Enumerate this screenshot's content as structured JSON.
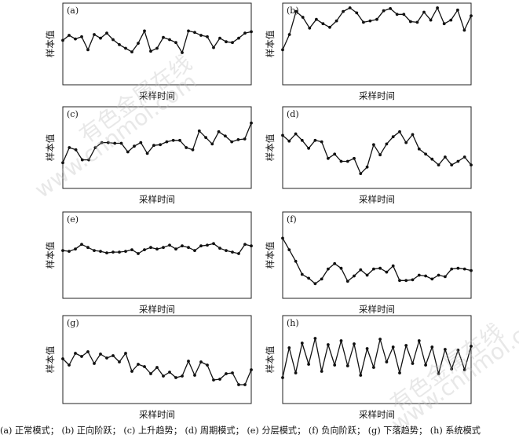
{
  "chart_data": [
    {
      "type": "line",
      "panel_label": "(a)",
      "ylabel": "样本值",
      "xlabel": "采样时间",
      "ylim": [
        0,
        1
      ],
      "values": [
        0.55,
        0.62,
        0.57,
        0.6,
        0.42,
        0.63,
        0.58,
        0.65,
        0.56,
        0.49,
        0.44,
        0.39,
        0.51,
        0.68,
        0.4,
        0.44,
        0.59,
        0.56,
        0.52,
        0.38,
        0.68,
        0.66,
        0.62,
        0.6,
        0.45,
        0.58,
        0.53,
        0.52,
        0.58,
        0.65,
        0.67
      ]
    },
    {
      "type": "line",
      "panel_label": "(b)",
      "ylabel": "样本值",
      "xlabel": "采样时间",
      "ylim": [
        0,
        1
      ],
      "values": [
        0.42,
        0.63,
        0.95,
        0.87,
        0.72,
        0.84,
        0.78,
        0.73,
        0.82,
        0.95,
        1.0,
        0.93,
        0.8,
        0.82,
        0.84,
        0.96,
        0.99,
        0.91,
        0.91,
        0.81,
        0.8,
        0.94,
        0.83,
        1.0,
        0.78,
        0.83,
        0.97,
        0.69,
        0.89
      ]
    },
    {
      "type": "line",
      "panel_label": "(c)",
      "ylabel": "样本值",
      "xlabel": "采样时间",
      "ylim": [
        0,
        1
      ],
      "values": [
        0.29,
        0.5,
        0.47,
        0.33,
        0.33,
        0.5,
        0.57,
        0.57,
        0.56,
        0.56,
        0.44,
        0.52,
        0.57,
        0.42,
        0.53,
        0.54,
        0.58,
        0.6,
        0.6,
        0.5,
        0.47,
        0.73,
        0.64,
        0.55,
        0.72,
        0.66,
        0.58,
        0.61,
        0.62,
        0.84
      ]
    },
    {
      "type": "line",
      "panel_label": "(d)",
      "ylabel": "样本值",
      "xlabel": "采样时间",
      "ylim": [
        0,
        1
      ],
      "values": [
        0.67,
        0.59,
        0.69,
        0.6,
        0.49,
        0.6,
        0.58,
        0.35,
        0.41,
        0.31,
        0.31,
        0.35,
        0.14,
        0.23,
        0.54,
        0.4,
        0.55,
        0.65,
        0.72,
        0.57,
        0.68,
        0.48,
        0.41,
        0.34,
        0.26,
        0.37,
        0.26,
        0.31,
        0.37,
        0.26
      ]
    },
    {
      "type": "line",
      "panel_label": "(e)",
      "ylabel": "样本值",
      "xlabel": "采样时间",
      "ylim": [
        0,
        1
      ],
      "values": [
        0.56,
        0.55,
        0.58,
        0.64,
        0.6,
        0.56,
        0.55,
        0.53,
        0.54,
        0.54,
        0.55,
        0.57,
        0.52,
        0.57,
        0.6,
        0.58,
        0.6,
        0.63,
        0.58,
        0.62,
        0.6,
        0.56,
        0.62,
        0.63,
        0.65,
        0.59,
        0.56,
        0.54,
        0.52,
        0.64,
        0.62
      ]
    },
    {
      "type": "line",
      "panel_label": "(f)",
      "ylabel": "样本值",
      "xlabel": "采样时间",
      "ylim": [
        0,
        1
      ],
      "values": [
        0.72,
        0.57,
        0.42,
        0.25,
        0.2,
        0.13,
        0.19,
        0.32,
        0.39,
        0.33,
        0.16,
        0.23,
        0.31,
        0.24,
        0.32,
        0.33,
        0.28,
        0.36,
        0.17,
        0.17,
        0.18,
        0.24,
        0.23,
        0.19,
        0.24,
        0.22,
        0.32,
        0.33,
        0.32,
        0.3
      ]
    },
    {
      "type": "line",
      "panel_label": "(g)",
      "ylabel": "样本值",
      "xlabel": "采样时间",
      "ylim": [
        0,
        1
      ],
      "values": [
        0.51,
        0.43,
        0.58,
        0.54,
        0.6,
        0.45,
        0.57,
        0.52,
        0.55,
        0.47,
        0.58,
        0.35,
        0.44,
        0.41,
        0.32,
        0.4,
        0.29,
        0.34,
        0.27,
        0.29,
        0.48,
        0.3,
        0.47,
        0.43,
        0.24,
        0.25,
        0.32,
        0.33,
        0.18,
        0.18,
        0.37
      ]
    },
    {
      "type": "line",
      "panel_label": "(h)",
      "ylabel": "样本值",
      "xlabel": "采样时间",
      "ylim": [
        0,
        1
      ],
      "values": [
        0.27,
        0.65,
        0.33,
        0.71,
        0.44,
        0.77,
        0.35,
        0.69,
        0.43,
        0.74,
        0.42,
        0.7,
        0.3,
        0.64,
        0.4,
        0.76,
        0.47,
        0.66,
        0.33,
        0.68,
        0.45,
        0.74,
        0.43,
        0.66,
        0.32,
        0.63,
        0.38,
        0.62,
        0.37,
        0.67
      ]
    }
  ],
  "caption": {
    "a": "(a)  正常模式；",
    "b": "(b)  正向阶跃；",
    "c": "(c)  上升趋势；",
    "d": "(d)  周期模式；",
    "e": "(e)  分层模式；",
    "f": "(f)  负向阶跃；",
    "g": "(g)  下落趋势；",
    "h": "(h)  系统模式"
  },
  "watermarks": {
    "text_cn": "有色金属在线",
    "text_url": "www.cnnmol.com"
  },
  "colors": {
    "line": "#111111",
    "frame": "#222222",
    "background": "#ffffff",
    "watermark": "#bebebe"
  }
}
